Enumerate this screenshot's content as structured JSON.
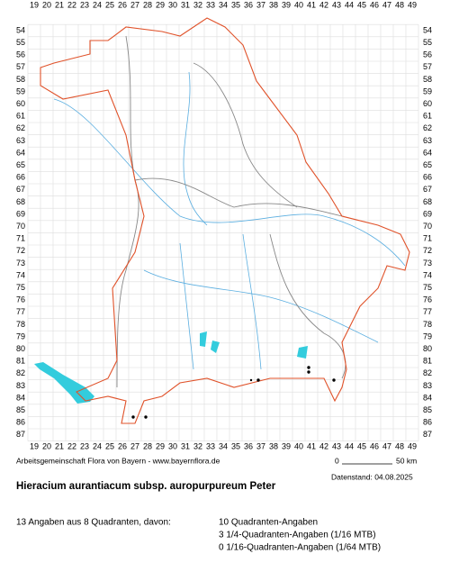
{
  "map": {
    "columns": [
      19,
      20,
      21,
      22,
      23,
      24,
      25,
      26,
      27,
      28,
      29,
      30,
      31,
      32,
      33,
      34,
      35,
      36,
      37,
      38,
      39,
      40,
      41,
      42,
      43,
      44,
      45,
      46,
      47,
      48,
      49
    ],
    "rows": [
      54,
      55,
      56,
      57,
      58,
      59,
      60,
      61,
      62,
      63,
      64,
      65,
      66,
      67,
      68,
      69,
      70,
      71,
      72,
      73,
      74,
      75,
      76,
      77,
      78,
      79,
      80,
      81,
      82,
      83,
      84,
      85,
      86,
      87
    ]
  },
  "footer": {
    "credit": "Arbeitsgemeinschaft Flora von Bayern - www.bayernflora.de",
    "scale_start": "0",
    "scale_end": "50 km",
    "date": "Datenstand: 04.08.2025"
  },
  "title": "Hieracium aurantiacum subsp. auropurpureum Peter",
  "summary": {
    "total": "13 Angaben aus 8 Quadranten, davon:",
    "lines": [
      "10 Quadranten-Angaben",
      "3 1/4-Quadranten-Angaben (1/16 MTB)",
      "0 1/16-Quadranten-Angaben (1/64 MTB)"
    ]
  }
}
